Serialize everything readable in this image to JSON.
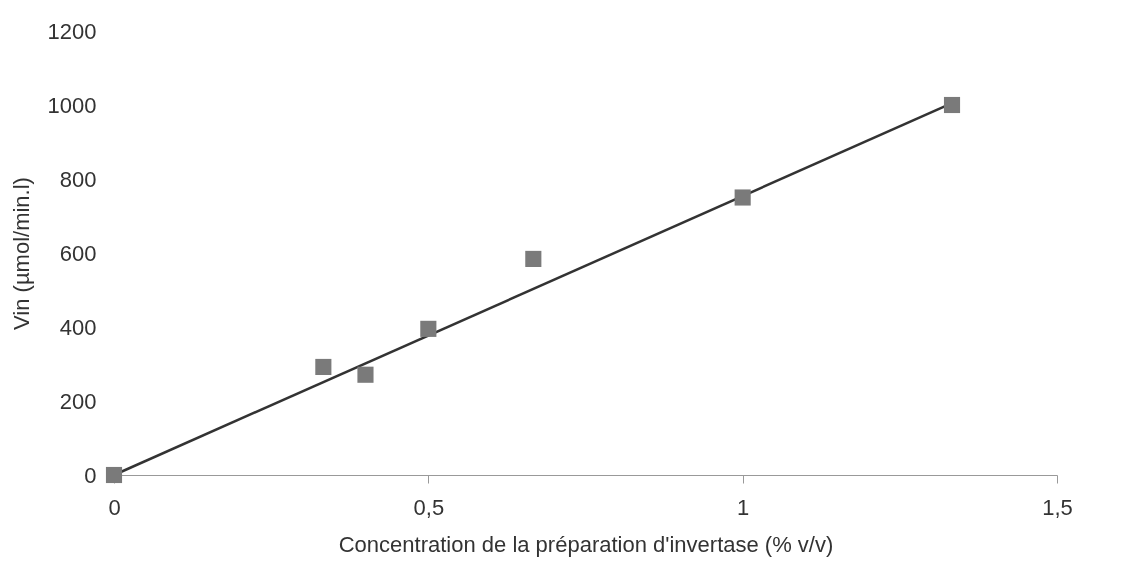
{
  "chart_data": {
    "type": "scatter",
    "xlabel": "Concentration de la préparation d'invertase (% v/v)",
    "ylabel": "Vin (µmol/min.l)",
    "xlim": [
      0,
      1.5
    ],
    "ylim": [
      0,
      1200
    ],
    "xticks": [
      0,
      {
        "value": 0.5,
        "label": "0,5"
      },
      1,
      {
        "value": 1.5,
        "label": "1,5"
      }
    ],
    "yticks": [
      0,
      200,
      400,
      600,
      800,
      1000,
      1200
    ],
    "grid": false,
    "marker": "square",
    "series": [
      {
        "type": "scatter",
        "color": "#7a7a7a",
        "x": [
          0,
          0.333,
          0.4,
          0.5,
          0.667,
          1,
          1.333
        ],
        "values": [
          0,
          292,
          271,
          395,
          584,
          750,
          1000
        ]
      },
      {
        "type": "line",
        "color": "#333333",
        "marker": "none",
        "x": [
          0,
          1.333
        ],
        "values": [
          0,
          1005
        ]
      }
    ]
  }
}
